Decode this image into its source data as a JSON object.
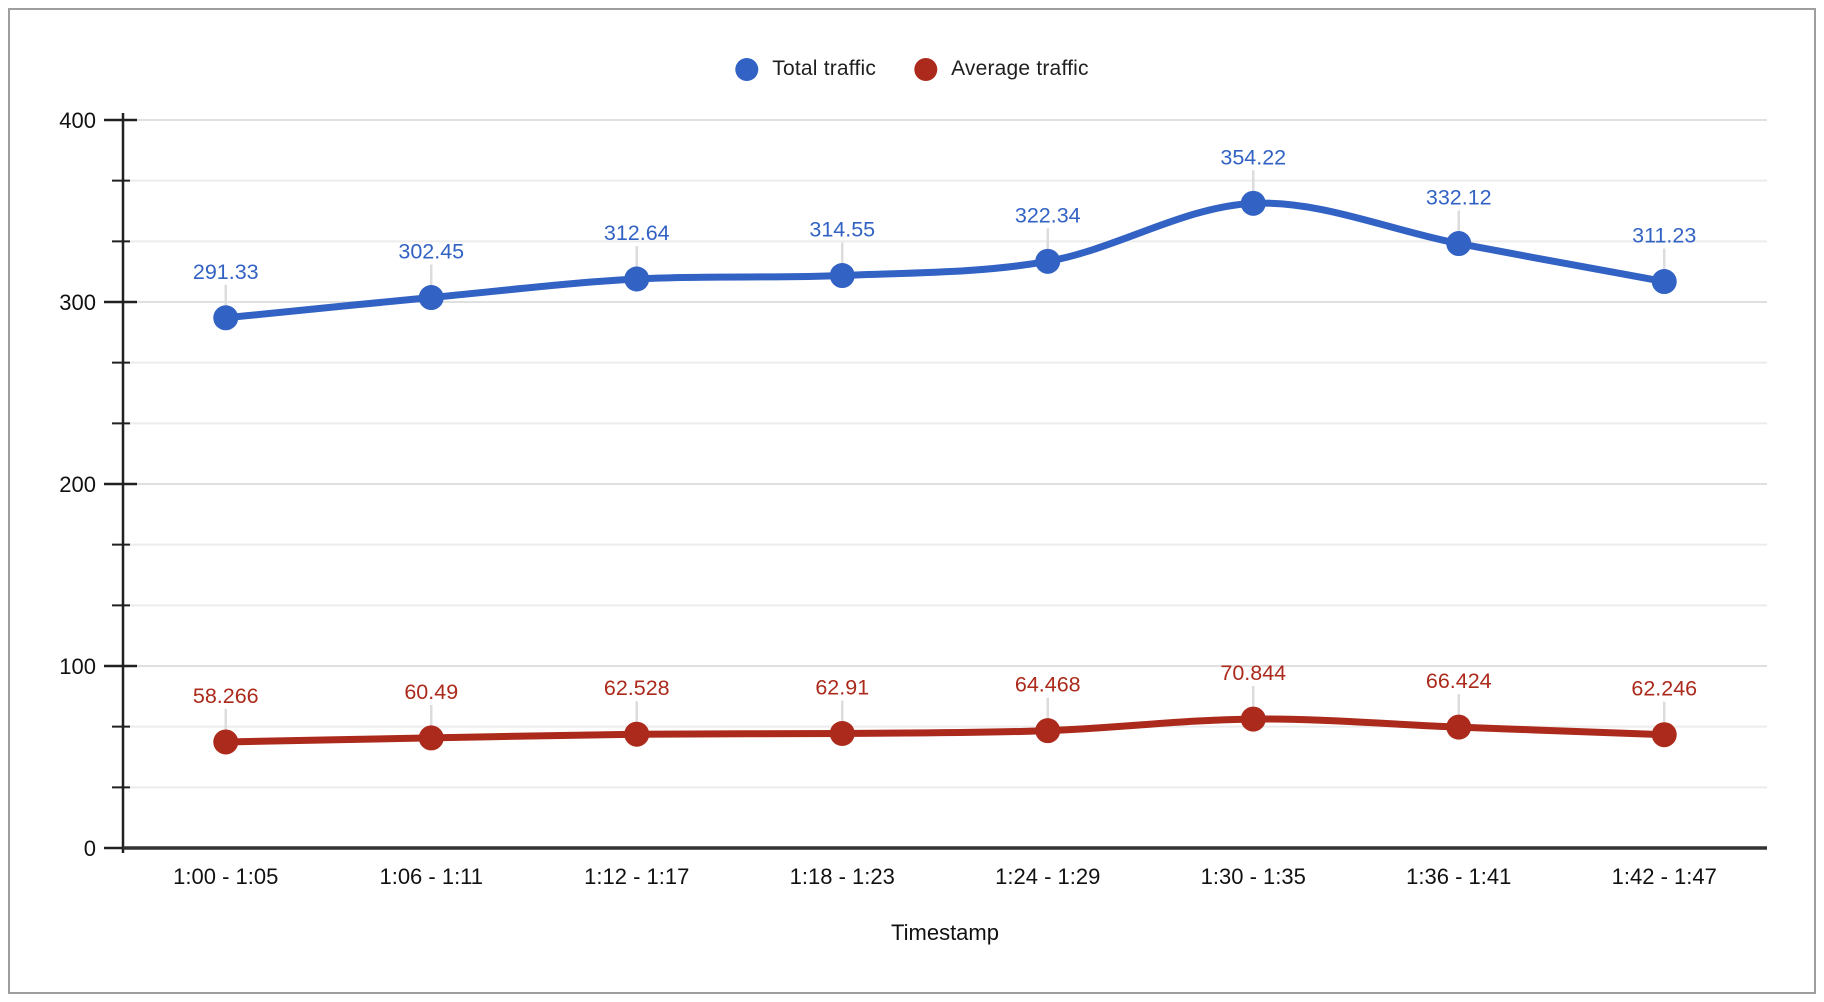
{
  "chart_data": {
    "type": "line",
    "title": "",
    "xlabel": "Timestamp",
    "ylabel": "",
    "categories": [
      "1:00 - 1:05",
      "1:06 - 1:11",
      "1:12 - 1:17",
      "1:18 - 1:23",
      "1:24 - 1:29",
      "1:30 - 1:35",
      "1:36 - 1:41",
      "1:42 - 1:47"
    ],
    "series": [
      {
        "name": "Total traffic",
        "color": "#3262c3",
        "values": [
          291.33,
          302.45,
          312.64,
          314.55,
          322.34,
          354.22,
          332.12,
          311.23
        ]
      },
      {
        "name": "Average traffic",
        "color": "#ab2a1b",
        "values": [
          58.266,
          60.49,
          62.528,
          62.91,
          64.468,
          70.844,
          66.424,
          62.246
        ]
      }
    ],
    "ylim": [
      0,
      400
    ],
    "yticks": [
      0,
      100,
      200,
      300,
      400
    ],
    "minor_gridlines_per_interval": 2,
    "grid": true,
    "smooth_lines": true,
    "point_labels": true,
    "legend_position": "top-center",
    "colors": {
      "axis": "#212121",
      "tick_label": "#111111",
      "major_grid": "#e0e0e0",
      "minor_grid": "#ececec",
      "leader_line": "#dcdcdc",
      "frame_border": "#9e9e9e"
    }
  }
}
